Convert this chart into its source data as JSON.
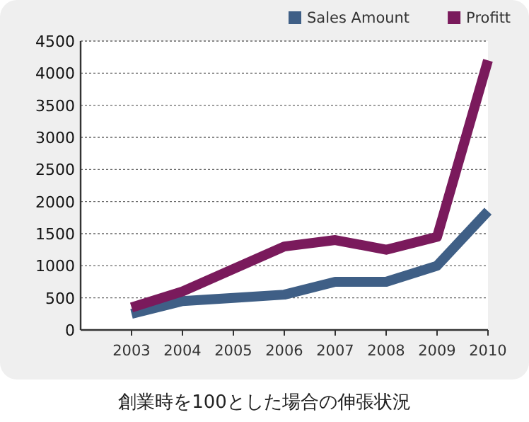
{
  "chart_data": {
    "type": "line",
    "x": [
      2003,
      2004,
      2005,
      2006,
      2007,
      2008,
      2009,
      2010
    ],
    "series": [
      {
        "name": "Sales Amount",
        "color": "#3f5f86",
        "values": [
          250,
          450,
          500,
          550,
          750,
          750,
          1000,
          1850
        ]
      },
      {
        "name": "Profitt",
        "color": "#7a1a5c",
        "values": [
          350,
          600,
          950,
          1300,
          1400,
          1250,
          1450,
          4200
        ]
      }
    ],
    "xlim": [
      2002,
      2010
    ],
    "xticks": [
      2003,
      2004,
      2005,
      2006,
      2007,
      2008,
      2009,
      2010
    ],
    "ylim": [
      0,
      4500
    ],
    "yticks": [
      0,
      500,
      1000,
      1500,
      2000,
      2500,
      3000,
      3500,
      4000,
      4500
    ],
    "grid": "y",
    "legend": "top right",
    "marker": "none",
    "line_style": "solid",
    "annotations": [
      "創業時を100とした場合の伸張状況"
    ]
  }
}
